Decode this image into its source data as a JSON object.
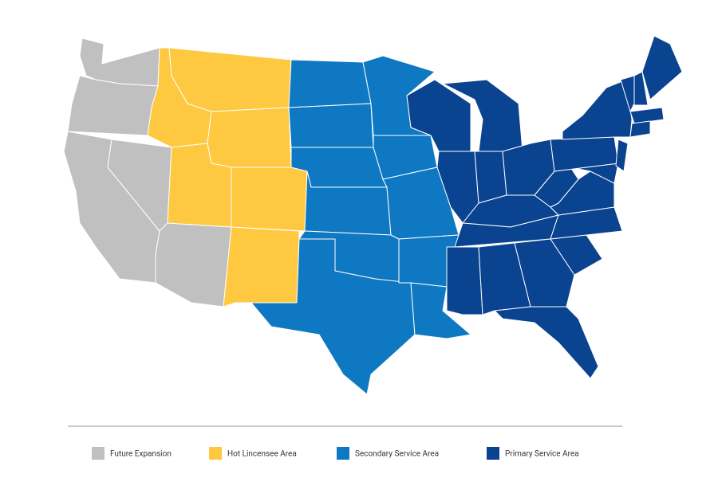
{
  "legend": [
    {
      "label": "Future Expansion",
      "color": "#c0c0c0"
    },
    {
      "label": "Hot Lincensee Area",
      "color": "#fec841"
    },
    {
      "label": "Secondary Service Area",
      "color": "#0e78c2"
    },
    {
      "label": "Primary Service Area",
      "color": "#0a4390"
    }
  ]
}
